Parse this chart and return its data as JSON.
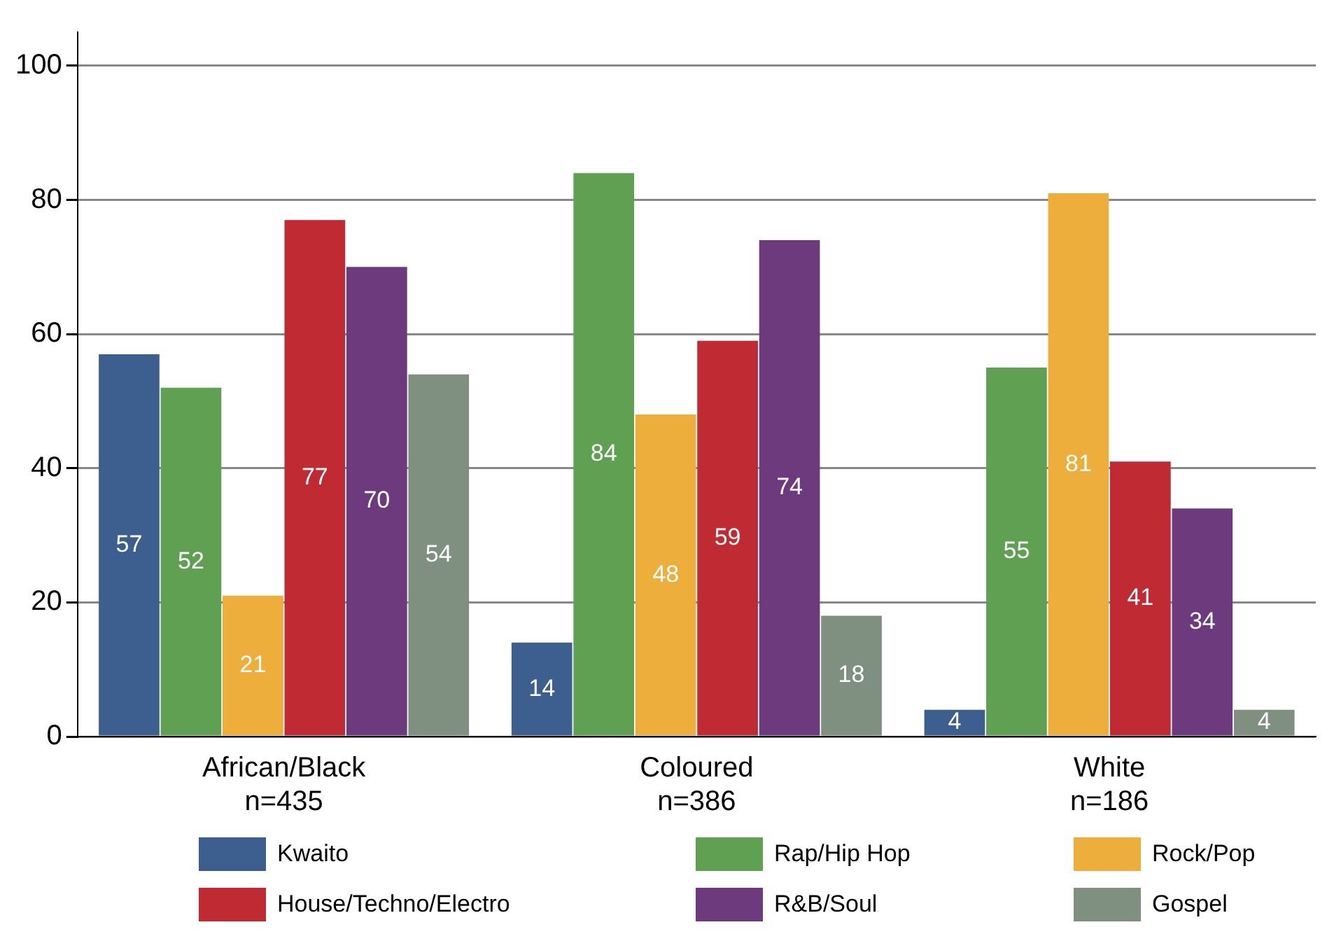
{
  "chart_data": {
    "type": "bar",
    "categories": [
      "African/Black\nn=435",
      "Coloured\nn=386",
      "White\nn=186"
    ],
    "series": [
      {
        "name": "Kwaito",
        "color": "#3d5f8f",
        "values": [
          57,
          14,
          4
        ]
      },
      {
        "name": "Rap/Hip Hop",
        "color": "#5fa052",
        "values": [
          52,
          84,
          55
        ]
      },
      {
        "name": "Rock/Pop",
        "color": "#eeae3c",
        "values": [
          21,
          48,
          81
        ]
      },
      {
        "name": "House/Techno/Electro",
        "color": "#c02a33",
        "values": [
          77,
          59,
          41
        ]
      },
      {
        "name": "R&B/Soul",
        "color": "#6e3a7e",
        "values": [
          70,
          74,
          34
        ]
      },
      {
        "name": "Gospel",
        "color": "#7f9080",
        "values": [
          54,
          18,
          4
        ]
      }
    ],
    "ylim": [
      0,
      105
    ],
    "yticks": [
      0,
      20,
      40,
      60,
      80,
      100
    ],
    "grid": "y",
    "legend": "bottom",
    "data_labels": true
  }
}
